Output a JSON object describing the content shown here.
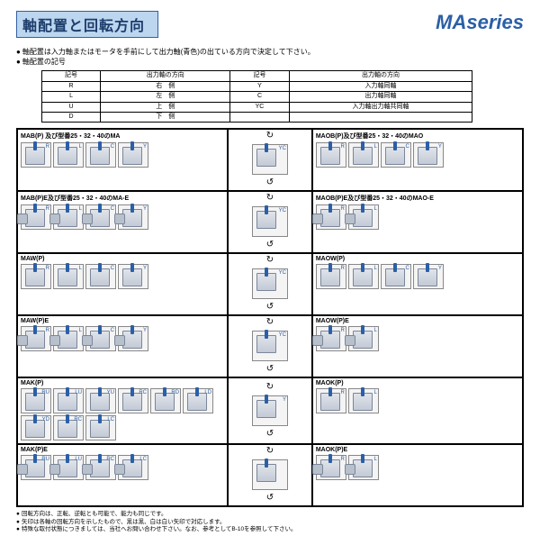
{
  "header": {
    "title": "軸配置と回転方向",
    "brand": "MAseries"
  },
  "intro": {
    "line1": "軸配置は入力軸またはモータを手前にして出力軸(青色)の出ている方向で決定して下さい。",
    "line2": "軸配置の記号"
  },
  "codes": {
    "head": [
      "記号",
      "出力軸の方向",
      "記号",
      "出力軸の方向"
    ],
    "rows": [
      [
        "R",
        "右　側",
        "Y",
        "入力軸同軸"
      ],
      [
        "L",
        "左　側",
        "C",
        "出力軸同軸"
      ],
      [
        "U",
        "上　側",
        "YC",
        "入力軸出力軸共同軸"
      ],
      [
        "D",
        "下　側",
        "",
        ""
      ]
    ]
  },
  "groups": [
    [
      {
        "title": "MAB(P) 及び型番25・32・40のMA",
        "thumbs": [
          {
            "t": "R"
          },
          {
            "t": "L"
          },
          {
            "t": "C"
          },
          {
            "t": "Y"
          }
        ],
        "motor": false
      },
      {
        "center": true,
        "tag": "YC"
      },
      {
        "title": "MAOB(P)及び型番25・32・40のMAO",
        "thumbs": [
          {
            "t": "R"
          },
          {
            "t": "L"
          },
          {
            "t": "C"
          },
          {
            "t": "Y"
          }
        ],
        "motor": false
      }
    ],
    [
      {
        "title": "MAB(P)E及び型番25・32・40のMA-E",
        "thumbs": [
          {
            "t": "R"
          },
          {
            "t": "L"
          },
          {
            "t": "C"
          },
          {
            "t": "Y"
          }
        ],
        "motor": true
      },
      {
        "center": true,
        "tag": "YC"
      },
      {
        "title": "MAOB(P)E及び型番25・32・40のMAO-E",
        "thumbs": [
          {
            "t": "R"
          },
          {
            "t": "L"
          }
        ],
        "motor": true
      }
    ],
    [
      {
        "title": "MAW(P)",
        "thumbs": [
          {
            "t": "R"
          },
          {
            "t": "L"
          },
          {
            "t": "C"
          },
          {
            "t": "Y"
          }
        ],
        "motor": false
      },
      {
        "center": true,
        "tag": "YC"
      },
      {
        "title": "MAOW(P)",
        "thumbs": [
          {
            "t": "R"
          },
          {
            "t": "L"
          },
          {
            "t": "C"
          },
          {
            "t": "Y"
          }
        ],
        "motor": false
      }
    ],
    [
      {
        "title": "MAW(P)E",
        "thumbs": [
          {
            "t": "R"
          },
          {
            "t": "L"
          },
          {
            "t": "C"
          },
          {
            "t": "Y"
          }
        ],
        "motor": true
      },
      {
        "center": true,
        "tag": "YC"
      },
      {
        "title": "MAOW(P)E",
        "thumbs": [
          {
            "t": "R"
          },
          {
            "t": "L"
          }
        ],
        "motor": true
      }
    ],
    [
      {
        "title": "MAK(P)",
        "thumbs": [
          {
            "t": "RU"
          },
          {
            "t": "LU"
          },
          {
            "t": "YU"
          },
          {
            "t": "RC"
          },
          {
            "t": "RD"
          },
          {
            "t": "LD"
          },
          {
            "t": "YD"
          },
          {
            "t": "RC"
          },
          {
            "t": "LC"
          }
        ],
        "motor": false
      },
      {
        "center": true,
        "tag": "Y"
      },
      {
        "title": "MAOK(P)",
        "thumbs": [
          {
            "t": "R"
          },
          {
            "t": "L"
          }
        ],
        "motor": false
      }
    ],
    [
      {
        "title": "MAK(P)E",
        "thumbs": [
          {
            "t": "RU"
          },
          {
            "t": "LU"
          },
          {
            "t": "RC"
          },
          {
            "t": "LC"
          }
        ],
        "motor": true
      },
      {
        "center": true,
        "tag": ""
      },
      {
        "title": "MAOK(P)E",
        "thumbs": [
          {
            "t": "R"
          },
          {
            "t": "L"
          }
        ],
        "motor": true
      }
    ]
  ],
  "notes": {
    "n1": "回転方向は、正転、逆転とも可能で、能力も同じです。",
    "n2": "矢印は各軸の回転方向を示したもので、黒は黒、白は白い矢印で対応します。",
    "n3": "特殊な取付状態につきましては、当社へお問い合わせ下さい。なお、参考としてB-10を参照して下さい。"
  }
}
